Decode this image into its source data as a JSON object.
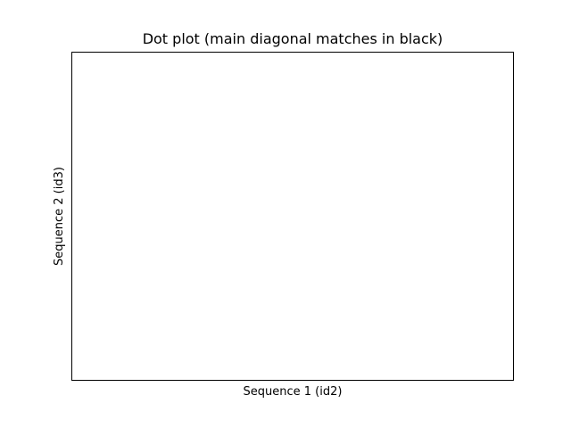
{
  "chart_data": {
    "type": "scatter",
    "title": "Dot plot (main diagonal matches in black)",
    "xlabel": "Sequence 1 (id2)",
    "ylabel": "Sequence 2 (id3)",
    "x": [],
    "y": [],
    "xticks": [],
    "yticks": [],
    "grid": false,
    "legend": "none",
    "colors": {
      "background": "#ffffff",
      "axes_edge": "#000000",
      "match": "#000000"
    }
  }
}
